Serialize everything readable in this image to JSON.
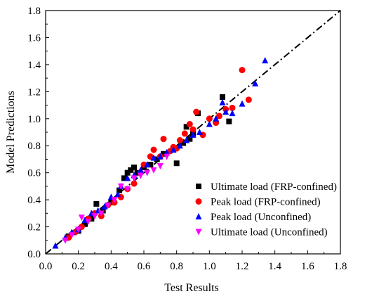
{
  "chart_data": {
    "type": "scatter",
    "xlabel": "Test Results",
    "ylabel": "Model Predictions",
    "xlim": [
      0.0,
      1.8
    ],
    "ylim": [
      0.0,
      1.8
    ],
    "xticks": [
      "0.0",
      "0.2",
      "0.4",
      "0.6",
      "0.8",
      "1.0",
      "1.2",
      "1.4",
      "1.6",
      "1.8"
    ],
    "yticks": [
      "0.0",
      "0.2",
      "0.4",
      "0.6",
      "0.8",
      "1.0",
      "1.2",
      "1.4",
      "1.6",
      "1.8"
    ],
    "reference_line": {
      "style": "dash-dot",
      "color": "#000000",
      "from": [
        0.0,
        0.0
      ],
      "to": [
        1.8,
        1.8
      ]
    },
    "grid": false,
    "legend_position": "lower-right",
    "series": [
      {
        "name": "Ultimate load (FRP-confined)",
        "marker": "square",
        "color": "#000000",
        "points": [
          [
            0.14,
            0.13
          ],
          [
            0.2,
            0.17
          ],
          [
            0.24,
            0.22
          ],
          [
            0.28,
            0.26
          ],
          [
            0.31,
            0.37
          ],
          [
            0.35,
            0.32
          ],
          [
            0.4,
            0.38
          ],
          [
            0.45,
            0.47
          ],
          [
            0.48,
            0.56
          ],
          [
            0.5,
            0.6
          ],
          [
            0.52,
            0.62
          ],
          [
            0.54,
            0.64
          ],
          [
            0.56,
            0.6
          ],
          [
            0.6,
            0.64
          ],
          [
            0.64,
            0.66
          ],
          [
            0.68,
            0.7
          ],
          [
            0.72,
            0.74
          ],
          [
            0.8,
            0.67
          ],
          [
            0.84,
            0.82
          ],
          [
            0.86,
            0.94
          ],
          [
            0.88,
            0.85
          ],
          [
            0.9,
            0.89
          ],
          [
            0.93,
            1.04
          ],
          [
            1.08,
            1.16
          ],
          [
            1.12,
            0.98
          ]
        ]
      },
      {
        "name": "Peak load (FRP-confined)",
        "marker": "circle",
        "color": "#ff0000",
        "points": [
          [
            0.14,
            0.12
          ],
          [
            0.18,
            0.16
          ],
          [
            0.22,
            0.2
          ],
          [
            0.26,
            0.26
          ],
          [
            0.3,
            0.3
          ],
          [
            0.34,
            0.28
          ],
          [
            0.38,
            0.36
          ],
          [
            0.42,
            0.38
          ],
          [
            0.46,
            0.42
          ],
          [
            0.5,
            0.48
          ],
          [
            0.54,
            0.52
          ],
          [
            0.58,
            0.6
          ],
          [
            0.6,
            0.66
          ],
          [
            0.64,
            0.72
          ],
          [
            0.66,
            0.77
          ],
          [
            0.7,
            0.72
          ],
          [
            0.72,
            0.85
          ],
          [
            0.76,
            0.76
          ],
          [
            0.78,
            0.79
          ],
          [
            0.8,
            0.78
          ],
          [
            0.82,
            0.84
          ],
          [
            0.85,
            0.89
          ],
          [
            0.88,
            0.96
          ],
          [
            0.9,
            0.92
          ],
          [
            0.92,
            1.05
          ],
          [
            0.96,
            0.88
          ],
          [
            1.0,
            1.0
          ],
          [
            1.04,
            0.97
          ],
          [
            1.06,
            1.02
          ],
          [
            1.1,
            1.07
          ],
          [
            1.14,
            1.08
          ],
          [
            1.2,
            1.36
          ],
          [
            1.24,
            1.14
          ]
        ]
      },
      {
        "name": "Peak load (Unconfined)",
        "marker": "triangle-up",
        "color": "#0000ff",
        "points": [
          [
            0.06,
            0.06
          ],
          [
            0.12,
            0.12
          ],
          [
            0.16,
            0.16
          ],
          [
            0.2,
            0.18
          ],
          [
            0.24,
            0.25
          ],
          [
            0.28,
            0.3
          ],
          [
            0.32,
            0.32
          ],
          [
            0.36,
            0.35
          ],
          [
            0.4,
            0.42
          ],
          [
            0.44,
            0.44
          ],
          [
            0.46,
            0.5
          ],
          [
            0.5,
            0.56
          ],
          [
            0.54,
            0.58
          ],
          [
            0.58,
            0.62
          ],
          [
            0.62,
            0.66
          ],
          [
            0.66,
            0.71
          ],
          [
            0.7,
            0.72
          ],
          [
            0.74,
            0.75
          ],
          [
            0.78,
            0.77
          ],
          [
            0.82,
            0.8
          ],
          [
            0.86,
            0.84
          ],
          [
            0.9,
            0.88
          ],
          [
            0.94,
            0.9
          ],
          [
            1.0,
            0.96
          ],
          [
            1.04,
            1.0
          ],
          [
            1.08,
            1.12
          ],
          [
            1.1,
            1.05
          ],
          [
            1.14,
            1.04
          ],
          [
            1.2,
            1.11
          ],
          [
            1.28,
            1.26
          ],
          [
            1.34,
            1.43
          ]
        ]
      },
      {
        "name": "Ultimate load (Unconfined)",
        "marker": "triangle-down",
        "color": "#ff00ff",
        "points": [
          [
            0.12,
            0.1
          ],
          [
            0.16,
            0.14
          ],
          [
            0.2,
            0.18
          ],
          [
            0.22,
            0.27
          ],
          [
            0.26,
            0.24
          ],
          [
            0.3,
            0.28
          ],
          [
            0.34,
            0.3
          ],
          [
            0.38,
            0.36
          ],
          [
            0.42,
            0.4
          ],
          [
            0.46,
            0.5
          ],
          [
            0.5,
            0.48
          ],
          [
            0.54,
            0.56
          ],
          [
            0.58,
            0.58
          ],
          [
            0.62,
            0.6
          ],
          [
            0.66,
            0.62
          ],
          [
            0.7,
            0.65
          ],
          [
            0.74,
            0.72
          ]
        ]
      }
    ]
  }
}
